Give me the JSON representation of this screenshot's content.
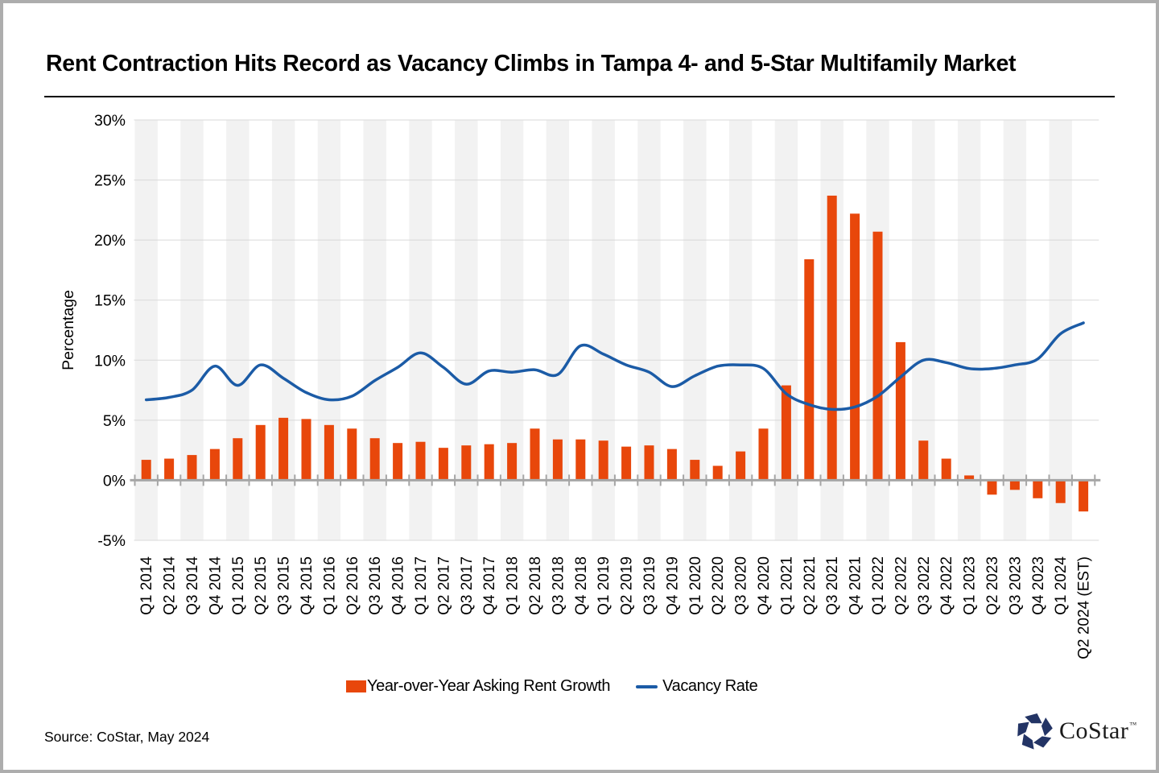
{
  "title": "Rent Contraction Hits Record as Vacancy Climbs in Tampa 4- and 5-Star Multifamily Market",
  "source_note": "Source: CoStar, May 2024",
  "logo": {
    "text": "CoStar",
    "tm": "™"
  },
  "colors": {
    "bar": "#E8470B",
    "line": "#1B5BA6",
    "stripe": "#F2F2F2",
    "grid": "#D9D9D9",
    "axis": "#A6A6A6",
    "logo_navy": "#233465",
    "text": "#000000"
  },
  "chart_data": {
    "type": "bar",
    "title": "Rent Contraction Hits Record as Vacancy Climbs in Tampa 4- and 5-Star Multifamily Market",
    "xlabel": "",
    "ylabel": "Percentage",
    "ylim": [
      -5,
      30
    ],
    "ytick_values": [
      30,
      25,
      20,
      15,
      10,
      5,
      0,
      -5
    ],
    "ytick_labels": [
      "30%",
      "25%",
      "20%",
      "15%",
      "10%",
      "5%",
      "0%",
      "-5%"
    ],
    "gridline_values": [
      30,
      25,
      20,
      15,
      10,
      5,
      -5
    ],
    "grid": "horizontal",
    "plot_background": "alternating-vertical-stripes",
    "legend_position": "bottom",
    "categories": [
      "Q1 2014",
      "Q2 2014",
      "Q3 2014",
      "Q4 2014",
      "Q1 2015",
      "Q2 2015",
      "Q3 2015",
      "Q4 2015",
      "Q1 2016",
      "Q2 2016",
      "Q3 2016",
      "Q4 2016",
      "Q1 2017",
      "Q2 2017",
      "Q3 2017",
      "Q4 2017",
      "Q1 2018",
      "Q2 2018",
      "Q3 2018",
      "Q4 2018",
      "Q1 2019",
      "Q2 2019",
      "Q3 2019",
      "Q4 2019",
      "Q1 2020",
      "Q2 2020",
      "Q3 2020",
      "Q4 2020",
      "Q1 2021",
      "Q2 2021",
      "Q3 2021",
      "Q4 2021",
      "Q1 2022",
      "Q2 2022",
      "Q3 2022",
      "Q4 2022",
      "Q1 2023",
      "Q2 2023",
      "Q3 2023",
      "Q4 2023",
      "Q1 2024",
      "Q2 2024 (EST)"
    ],
    "series": [
      {
        "name": "Year-over-Year Asking Rent Growth",
        "type": "bar",
        "color": "#E8470B",
        "values": [
          1.7,
          1.8,
          2.1,
          2.6,
          3.5,
          4.6,
          5.2,
          5.1,
          4.6,
          4.3,
          3.5,
          3.1,
          3.2,
          2.7,
          2.9,
          3.0,
          3.1,
          4.3,
          3.4,
          3.4,
          3.3,
          2.8,
          2.9,
          2.6,
          1.7,
          1.2,
          2.4,
          4.3,
          7.9,
          18.4,
          23.7,
          22.2,
          20.7,
          11.5,
          3.3,
          1.8,
          0.4,
          -1.2,
          -0.8,
          -1.5,
          -1.9,
          -2.6
        ]
      },
      {
        "name": "Vacancy Rate",
        "type": "line",
        "color": "#1B5BA6",
        "values": [
          6.7,
          6.9,
          7.5,
          9.5,
          7.9,
          9.6,
          8.5,
          7.3,
          6.7,
          7.0,
          8.3,
          9.4,
          10.6,
          9.4,
          8.0,
          9.1,
          9.0,
          9.2,
          8.8,
          11.2,
          10.5,
          9.6,
          9.0,
          7.8,
          8.7,
          9.5,
          9.6,
          9.3,
          7.2,
          6.3,
          5.9,
          6.1,
          7.0,
          8.6,
          10.0,
          9.8,
          9.3,
          9.3,
          9.6,
          10.1,
          12.2,
          13.1
        ]
      }
    ]
  }
}
